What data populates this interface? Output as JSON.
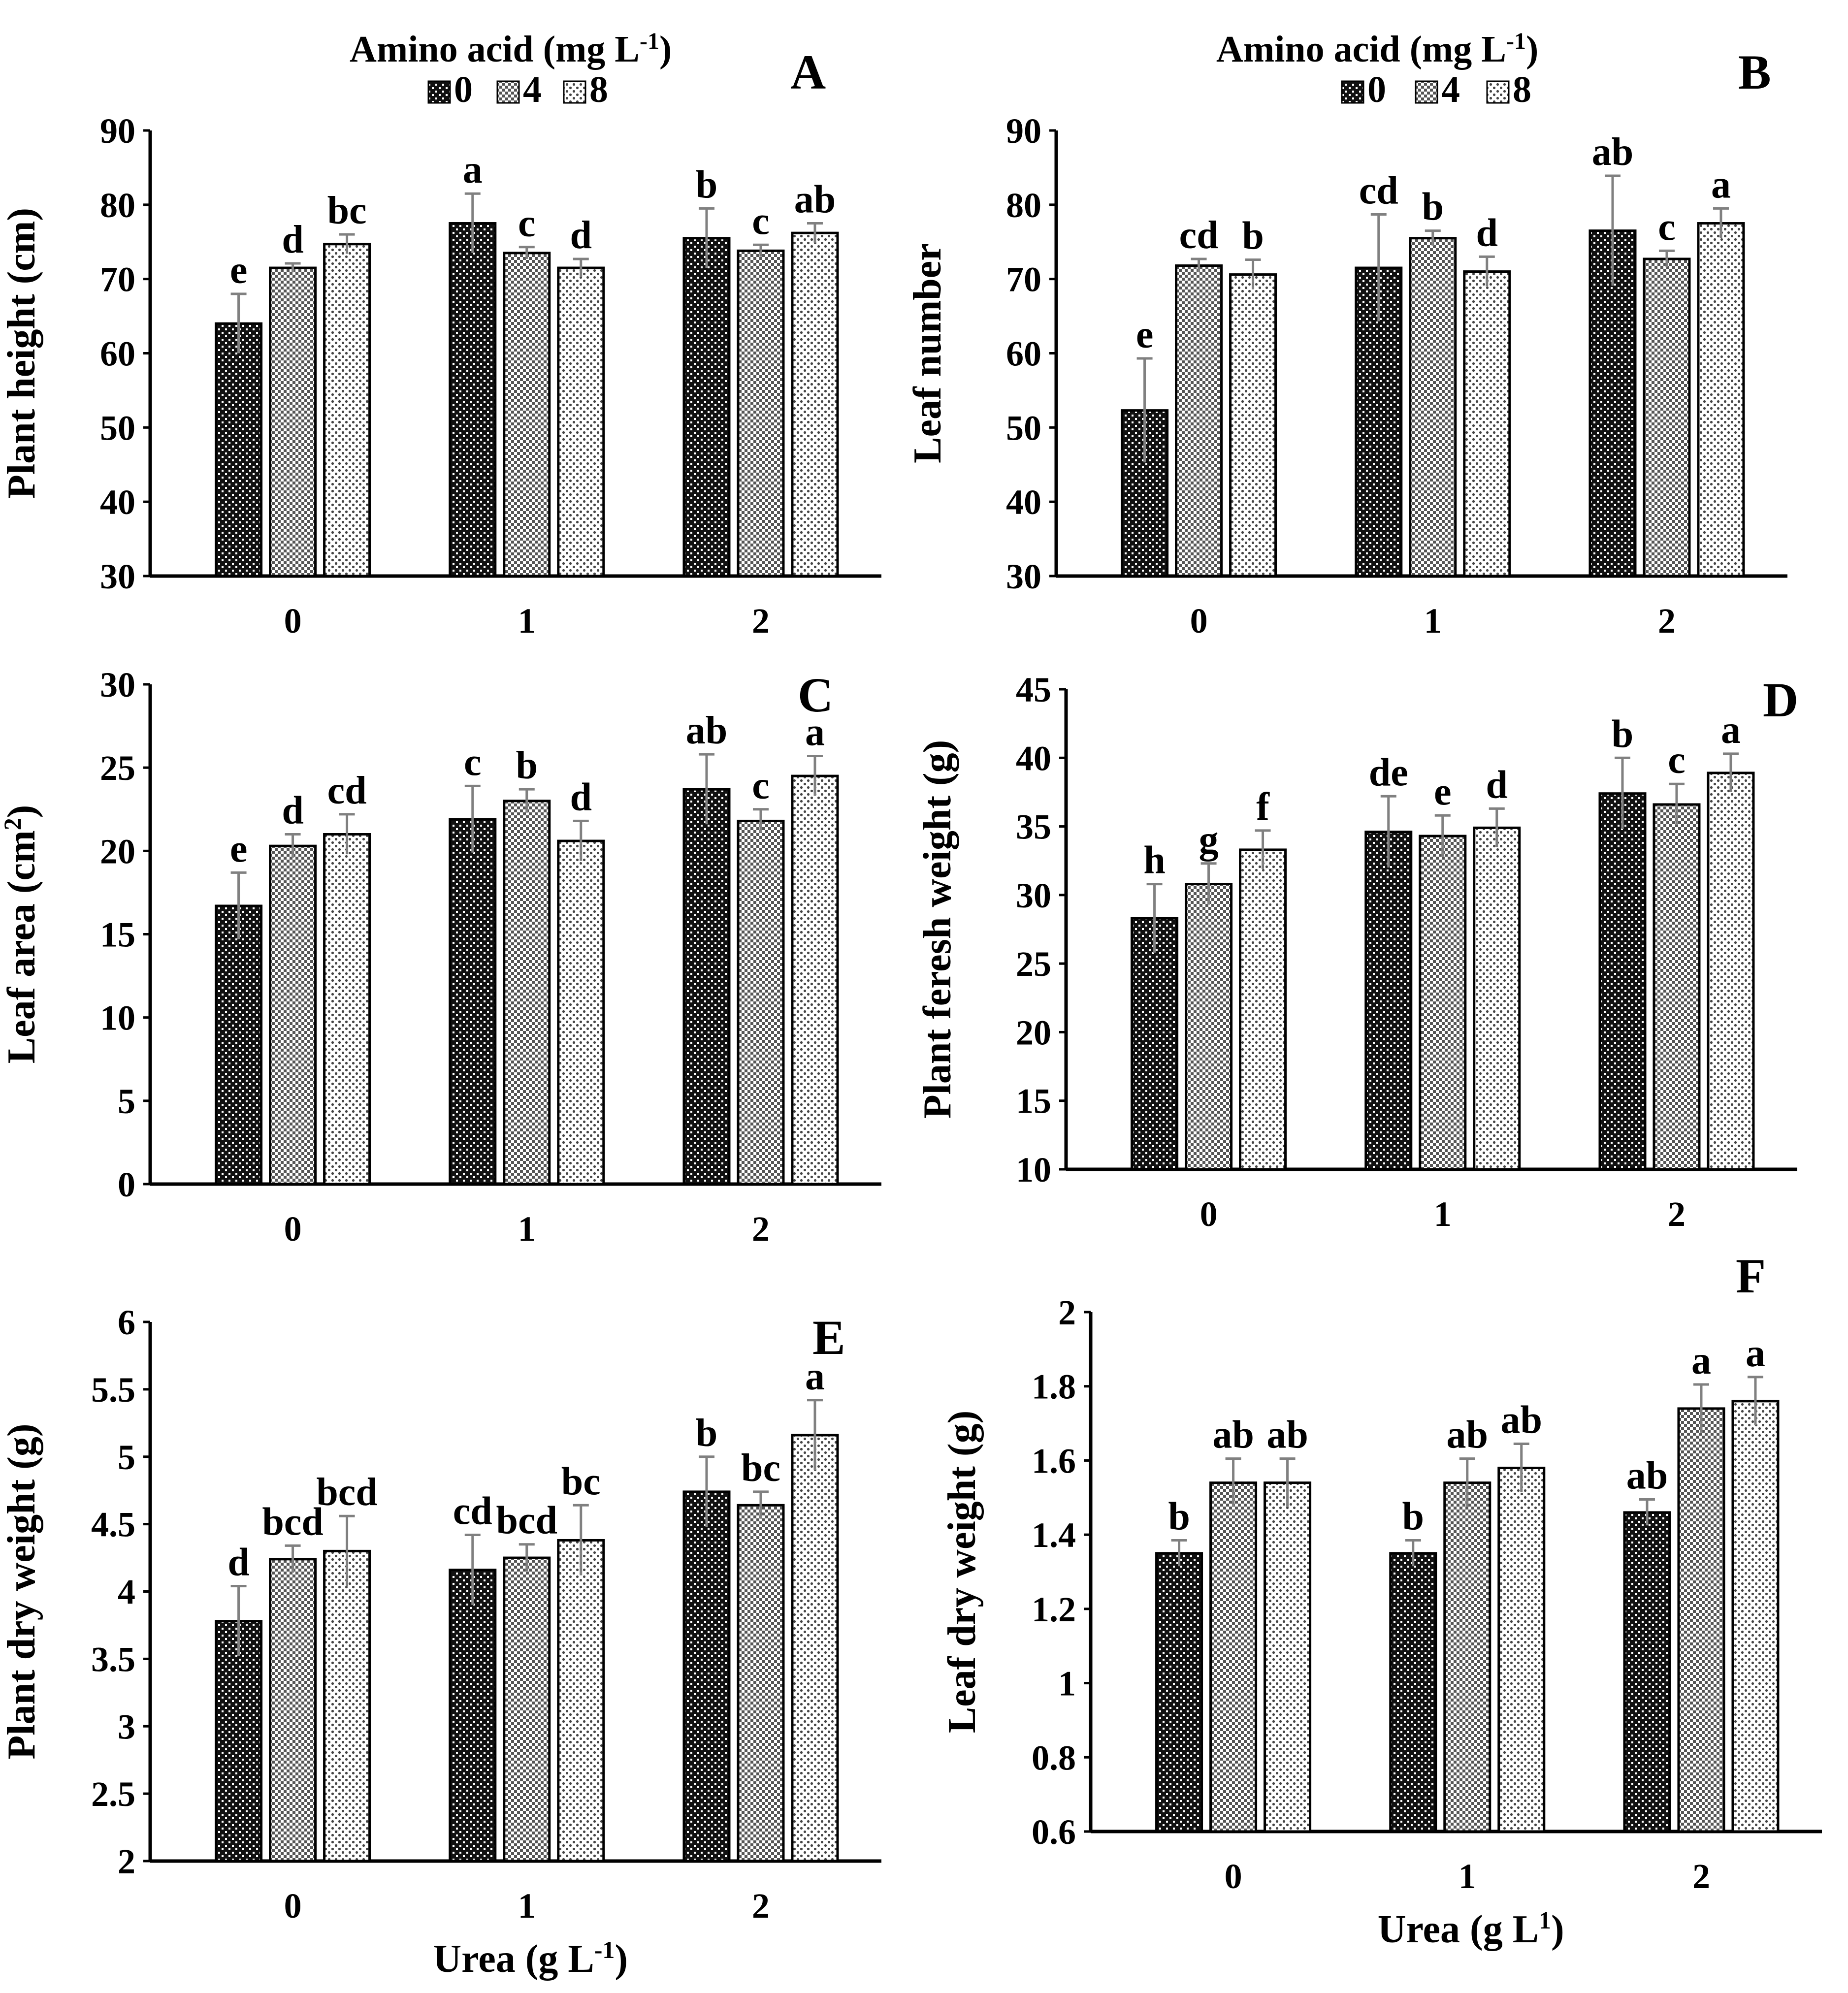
{
  "colors": {
    "axis": "#000000",
    "error_bar": "#808080",
    "bar_outline": "#000000"
  },
  "legend": {
    "title": "Amino acid (mg L",
    "title_sup": "-1",
    "title_end": ")",
    "entries": [
      "0",
      "4",
      "8"
    ]
  },
  "chart_data": [
    {
      "panel": "A",
      "type": "bar",
      "ylabel": "Plant height (cm)",
      "xlabel": "",
      "ylim": [
        30,
        90
      ],
      "yticks": [
        30,
        40,
        50,
        60,
        70,
        80,
        90
      ],
      "categories": [
        "0",
        "1",
        "2"
      ],
      "series": [
        {
          "name": "0",
          "values": [
            64,
            77.5,
            75.5
          ],
          "errors": [
            4,
            4,
            4
          ],
          "letters": [
            "e",
            "a",
            "b"
          ]
        },
        {
          "name": "4",
          "values": [
            71.5,
            73.5,
            73.8
          ],
          "errors": [
            0.6,
            0.8,
            0.8
          ],
          "letters": [
            "d",
            "c",
            "c"
          ]
        },
        {
          "name": "8",
          "values": [
            74.7,
            71.5,
            76.2
          ],
          "errors": [
            1.3,
            1.2,
            1.3
          ],
          "letters": [
            "bc",
            "d",
            "ab"
          ]
        }
      ]
    },
    {
      "panel": "B",
      "type": "bar",
      "ylabel": "Leaf number",
      "xlabel": "",
      "ylim": [
        30,
        90
      ],
      "yticks": [
        30,
        40,
        50,
        60,
        70,
        80,
        90
      ],
      "categories": [
        "0",
        "1",
        "2"
      ],
      "series": [
        {
          "name": "0",
          "values": [
            52.3,
            71.5,
            76.5
          ],
          "errors": [
            7,
            7.2,
            7.4
          ],
          "letters": [
            "e",
            "cd",
            "ab"
          ]
        },
        {
          "name": "4",
          "values": [
            71.8,
            75.5,
            72.7
          ],
          "errors": [
            0.9,
            1,
            1.1
          ],
          "letters": [
            "cd",
            "b",
            "c"
          ]
        },
        {
          "name": "8",
          "values": [
            70.6,
            71,
            77.5
          ],
          "errors": [
            2,
            2,
            2
          ],
          "letters": [
            "b",
            "d",
            "a"
          ]
        }
      ]
    },
    {
      "panel": "C",
      "type": "bar",
      "ylabel": "Leaf area (cm",
      "ylabel_sup": "2",
      "ylabel_end": ")",
      "xlabel": "",
      "ylim": [
        0,
        30
      ],
      "yticks": [
        0,
        5,
        10,
        15,
        20,
        25,
        30
      ],
      "categories": [
        "0",
        "1",
        "2"
      ],
      "series": [
        {
          "name": "0",
          "values": [
            16.7,
            21.9,
            23.7
          ],
          "errors": [
            2,
            2,
            2.1
          ],
          "letters": [
            "e",
            "c",
            "ab"
          ]
        },
        {
          "name": "4",
          "values": [
            20.3,
            23,
            21.8
          ],
          "errors": [
            0.7,
            0.7,
            0.7
          ],
          "letters": [
            "d",
            "b",
            "c"
          ]
        },
        {
          "name": "8",
          "values": [
            21,
            20.6,
            24.5
          ],
          "errors": [
            1.2,
            1.2,
            1.2
          ],
          "letters": [
            "cd",
            "d",
            "a"
          ]
        }
      ]
    },
    {
      "panel": "D",
      "type": "bar",
      "ylabel": "Plant feresh weight (g)",
      "xlabel": "",
      "ylim": [
        10,
        45
      ],
      "yticks": [
        10,
        15,
        20,
        25,
        30,
        35,
        40,
        45
      ],
      "categories": [
        "0",
        "1",
        "2"
      ],
      "series": [
        {
          "name": "0",
          "values": [
            28.3,
            34.6,
            37.4
          ],
          "errors": [
            2.5,
            2.6,
            2.6
          ],
          "letters": [
            "h",
            "de",
            "b"
          ]
        },
        {
          "name": "4",
          "values": [
            30.8,
            34.3,
            36.6
          ],
          "errors": [
            1.5,
            1.5,
            1.5
          ],
          "letters": [
            "g",
            "e",
            "c"
          ]
        },
        {
          "name": "8",
          "values": [
            33.3,
            34.9,
            38.9
          ],
          "errors": [
            1.4,
            1.4,
            1.4
          ],
          "letters": [
            "f",
            "d",
            "a"
          ]
        }
      ]
    },
    {
      "panel": "E",
      "type": "bar",
      "ylabel": "Plant dry weight (g)",
      "xlabel": "Urea (g L",
      "xlabel_sup": "-1",
      "xlabel_end": ")",
      "ylim": [
        2,
        6
      ],
      "yticks": [
        "2",
        "2.5",
        "3",
        "3.5",
        "4",
        "4.5",
        "5",
        "5.5",
        "6"
      ],
      "categories": [
        "0",
        "1",
        "2"
      ],
      "series": [
        {
          "name": "0",
          "values": [
            3.78,
            4.16,
            4.74
          ],
          "errors": [
            0.26,
            0.26,
            0.26
          ],
          "letters": [
            "d",
            "cd",
            "b"
          ]
        },
        {
          "name": "4",
          "values": [
            4.24,
            4.25,
            4.64
          ],
          "errors": [
            0.1,
            0.1,
            0.1
          ],
          "letters": [
            "bcd",
            "bcd",
            "bc"
          ]
        },
        {
          "name": "8",
          "values": [
            4.3,
            4.38,
            5.16
          ],
          "errors": [
            0.26,
            0.26,
            0.26
          ],
          "letters": [
            "bcd",
            "bc",
            "a"
          ]
        }
      ]
    },
    {
      "panel": "F",
      "type": "bar",
      "ylabel": "Leaf dry weight (g)",
      "xlabel": "Urea (g L",
      "xlabel_sup": "1",
      "xlabel_end": ")",
      "ylim": [
        0.6,
        2
      ],
      "yticks": [
        "0.6",
        "0.8",
        "1",
        "1.2",
        "1.4",
        "1.6",
        "1.8",
        "2"
      ],
      "categories": [
        "0",
        "1",
        "2"
      ],
      "series": [
        {
          "name": "0",
          "values": [
            1.35,
            1.35,
            1.46
          ],
          "errors": [
            0.035,
            0.035,
            0.035
          ],
          "letters": [
            "b",
            "b",
            "ab"
          ]
        },
        {
          "name": "4",
          "values": [
            1.54,
            1.54,
            1.74
          ],
          "errors": [
            0.065,
            0.065,
            0.065
          ],
          "letters": [
            "ab",
            "ab",
            "a"
          ]
        },
        {
          "name": "8",
          "values": [
            1.54,
            1.58,
            1.76
          ],
          "errors": [
            0.065,
            0.065,
            0.065
          ],
          "letters": [
            "ab",
            "ab",
            "a"
          ]
        }
      ]
    }
  ]
}
